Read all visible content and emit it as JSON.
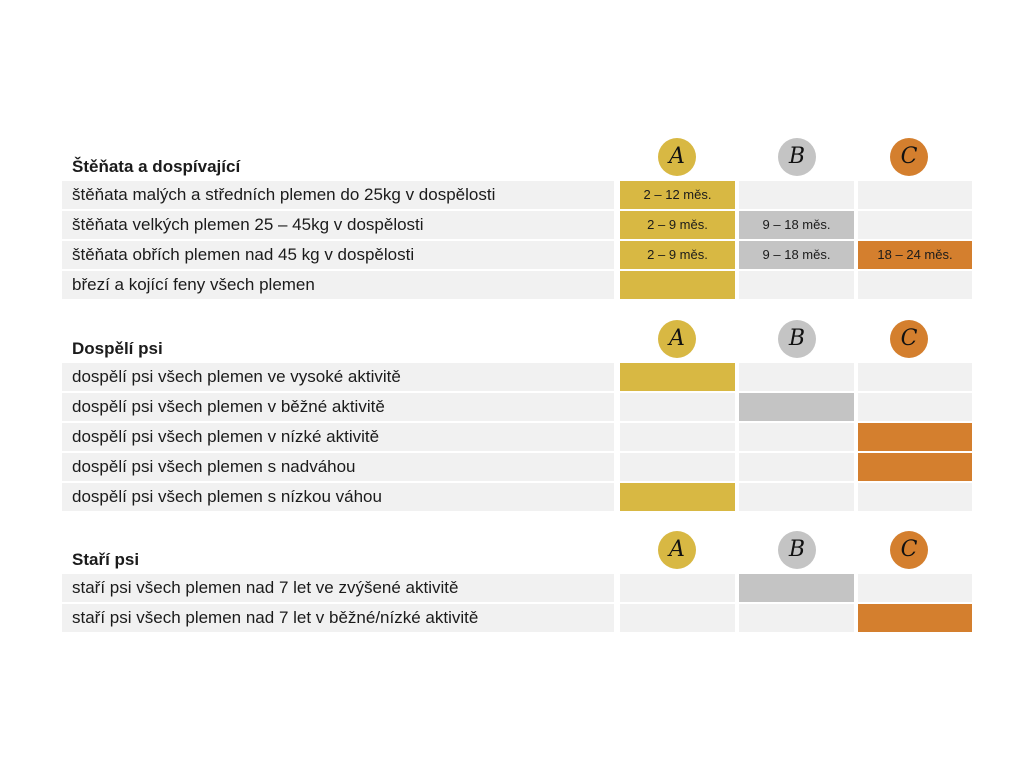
{
  "colors": {
    "a": "#d8b843",
    "b": "#c4c4c4",
    "c": "#d47f2e",
    "empty": "#f1f1f1"
  },
  "badges": {
    "a": "A",
    "b": "B",
    "c": "C"
  },
  "sections": [
    {
      "title": "Štěňata a dospívající",
      "rows": [
        {
          "label": "štěňata malých a středních plemen do 25kg v dospělosti",
          "a": {
            "on": true,
            "text": "2 – 12 měs."
          },
          "b": {
            "on": false,
            "text": ""
          },
          "c": {
            "on": false,
            "text": ""
          }
        },
        {
          "label": "štěňata velkých plemen 25 – 45kg v dospělosti",
          "a": {
            "on": true,
            "text": "2 – 9 měs."
          },
          "b": {
            "on": true,
            "text": "9 – 18 měs."
          },
          "c": {
            "on": false,
            "text": ""
          }
        },
        {
          "label": "štěňata obřích plemen nad 45 kg v dospělosti",
          "a": {
            "on": true,
            "text": "2 – 9 měs."
          },
          "b": {
            "on": true,
            "text": "9 – 18 měs."
          },
          "c": {
            "on": true,
            "text": "18 – 24 měs."
          }
        },
        {
          "label": "březí a kojící feny všech plemen",
          "a": {
            "on": true,
            "text": ""
          },
          "b": {
            "on": false,
            "text": ""
          },
          "c": {
            "on": false,
            "text": ""
          }
        }
      ]
    },
    {
      "title": "Dospělí psi",
      "rows": [
        {
          "label": "dospělí psi všech plemen ve vysoké aktivitě",
          "a": {
            "on": true,
            "text": ""
          },
          "b": {
            "on": false,
            "text": ""
          },
          "c": {
            "on": false,
            "text": ""
          }
        },
        {
          "label": "dospělí psi všech plemen v běžné aktivitě",
          "a": {
            "on": false,
            "text": ""
          },
          "b": {
            "on": true,
            "text": ""
          },
          "c": {
            "on": false,
            "text": ""
          }
        },
        {
          "label": "dospělí psi všech plemen v nízké aktivitě",
          "a": {
            "on": false,
            "text": ""
          },
          "b": {
            "on": false,
            "text": ""
          },
          "c": {
            "on": true,
            "text": ""
          }
        },
        {
          "label": "dospělí psi všech plemen s nadváhou",
          "a": {
            "on": false,
            "text": ""
          },
          "b": {
            "on": false,
            "text": ""
          },
          "c": {
            "on": true,
            "text": ""
          }
        },
        {
          "label": "dospělí psi všech plemen s nízkou váhou",
          "a": {
            "on": true,
            "text": ""
          },
          "b": {
            "on": false,
            "text": ""
          },
          "c": {
            "on": false,
            "text": ""
          }
        }
      ]
    },
    {
      "title": "Staří psi",
      "rows": [
        {
          "label": "staří psi všech plemen nad 7 let ve zvýšené aktivitě",
          "a": {
            "on": false,
            "text": ""
          },
          "b": {
            "on": true,
            "text": ""
          },
          "c": {
            "on": false,
            "text": ""
          }
        },
        {
          "label": "staří psi všech plemen nad 7 let v běžné/nízké aktivitě",
          "a": {
            "on": false,
            "text": ""
          },
          "b": {
            "on": false,
            "text": ""
          },
          "c": {
            "on": true,
            "text": ""
          }
        }
      ]
    }
  ]
}
